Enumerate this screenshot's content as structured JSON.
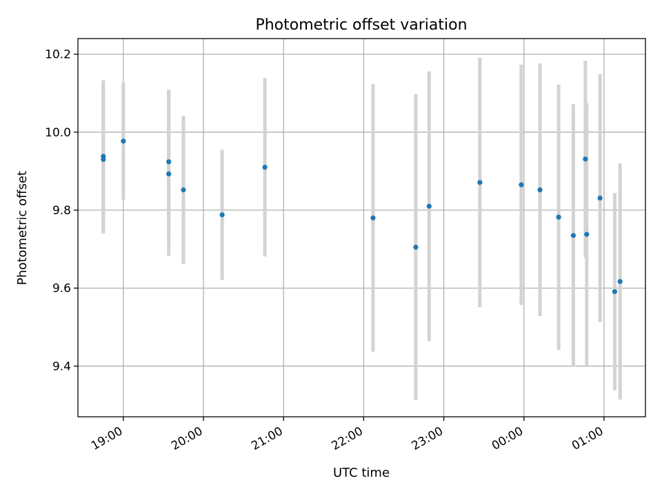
{
  "chart_data": {
    "type": "scatter",
    "title": "Photometric offset variation",
    "xlabel": "UTC time",
    "ylabel": "Photometric offset",
    "x_unit": "UTC hh:mm, times after 24:00 fall on the following day",
    "xlim": [
      "18:26",
      "01:31"
    ],
    "ylim": [
      9.27,
      10.24
    ],
    "x_ticks": [
      "19:00",
      "20:00",
      "21:00",
      "22:00",
      "23:00",
      "00:00",
      "01:00"
    ],
    "y_ticks": [
      9.4,
      9.6,
      9.8,
      10.0,
      10.2
    ],
    "grid": true,
    "colors": {
      "point": "#1f77b4",
      "error_bar": "#d3d3d3"
    },
    "series": [
      {
        "points": [
          {
            "x": "18:45",
            "y": 9.938,
            "err": 0.195
          },
          {
            "x": "18:45",
            "y": 9.93,
            "err": 0.19
          },
          {
            "x": "19:00",
            "y": 9.977,
            "err": 0.15
          },
          {
            "x": "19:34",
            "y": 9.924,
            "err": 0.185
          },
          {
            "x": "19:34",
            "y": 9.893,
            "err": 0.21
          },
          {
            "x": "19:45",
            "y": 9.852,
            "err": 0.19
          },
          {
            "x": "20:14",
            "y": 9.788,
            "err": 0.167
          },
          {
            "x": "20:46",
            "y": 9.91,
            "err": 0.229
          },
          {
            "x": "22:07",
            "y": 9.78,
            "err": 0.343
          },
          {
            "x": "22:39",
            "y": 9.705,
            "err": 0.392
          },
          {
            "x": "22:49",
            "y": 9.81,
            "err": 0.346
          },
          {
            "x": "23:27",
            "y": 9.871,
            "err": 0.32
          },
          {
            "x": "23:58",
            "y": 9.865,
            "err": 0.308
          },
          {
            "x": "24:12",
            "y": 9.852,
            "err": 0.324
          },
          {
            "x": "24:26",
            "y": 9.782,
            "err": 0.34
          },
          {
            "x": "24:37",
            "y": 9.735,
            "err": 0.337
          },
          {
            "x": "24:46",
            "y": 9.931,
            "err": 0.252
          },
          {
            "x": "24:47",
            "y": 9.738,
            "err": 0.336
          },
          {
            "x": "24:57",
            "y": 9.831,
            "err": 0.318
          },
          {
            "x": "25:08",
            "y": 9.591,
            "err": 0.253
          },
          {
            "x": "25:12",
            "y": 9.617,
            "err": 0.303
          }
        ]
      }
    ]
  }
}
